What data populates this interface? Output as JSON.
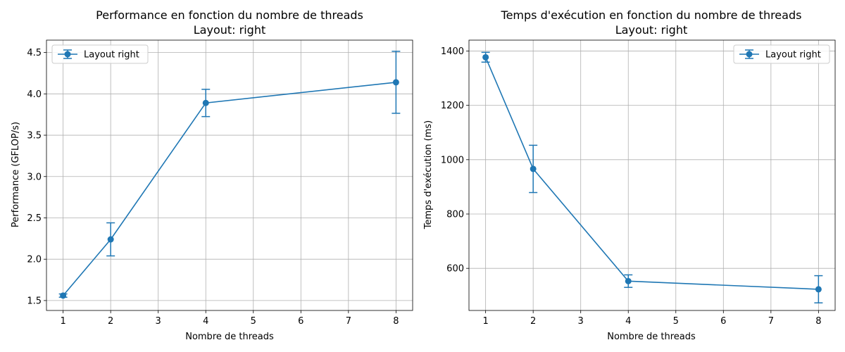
{
  "chart_data": [
    {
      "type": "line",
      "title": "Performance en fonction du nombre de threads",
      "subtitle": "Layout: right",
      "xlabel": "Nombre de threads",
      "ylabel": "Performance (GFLOP/s)",
      "xlim": [
        0.65,
        8.35
      ],
      "ylim": [
        1.38,
        4.65
      ],
      "xticks": [
        1,
        2,
        3,
        4,
        5,
        6,
        7,
        8
      ],
      "yticks": [
        1.5,
        2.0,
        2.5,
        3.0,
        3.5,
        4.0,
        4.5
      ],
      "ytick_labels": [
        "1.5",
        "2.0",
        "2.5",
        "3.0",
        "3.5",
        "4.0",
        "4.5"
      ],
      "grid": true,
      "legend": "top-left",
      "series": [
        {
          "name": "Layout right",
          "color": "#1f77b4",
          "x": [
            1,
            2,
            4,
            8
          ],
          "y": [
            1.56,
            2.24,
            3.89,
            4.14
          ],
          "yerr": [
            0.02,
            0.2,
            0.165,
            0.375
          ]
        }
      ]
    },
    {
      "type": "line",
      "title": "Temps d'exécution en fonction du nombre de threads",
      "subtitle": "Layout: right",
      "xlabel": "Nombre de threads",
      "ylabel": "Temps d'exécution (ms)",
      "xlim": [
        0.65,
        8.35
      ],
      "ylim": [
        445,
        1440
      ],
      "xticks": [
        1,
        2,
        3,
        4,
        5,
        6,
        7,
        8
      ],
      "yticks": [
        600,
        800,
        1000,
        1200,
        1400
      ],
      "ytick_labels": [
        "600",
        "800",
        "1000",
        "1200",
        "1400"
      ],
      "grid": true,
      "legend": "top-right",
      "series": [
        {
          "name": "Layout right",
          "color": "#1f77b4",
          "x": [
            1,
            2,
            4,
            8
          ],
          "y": [
            1377,
            966,
            553,
            523
          ],
          "yerr": [
            18,
            87,
            23,
            50
          ]
        }
      ]
    }
  ]
}
